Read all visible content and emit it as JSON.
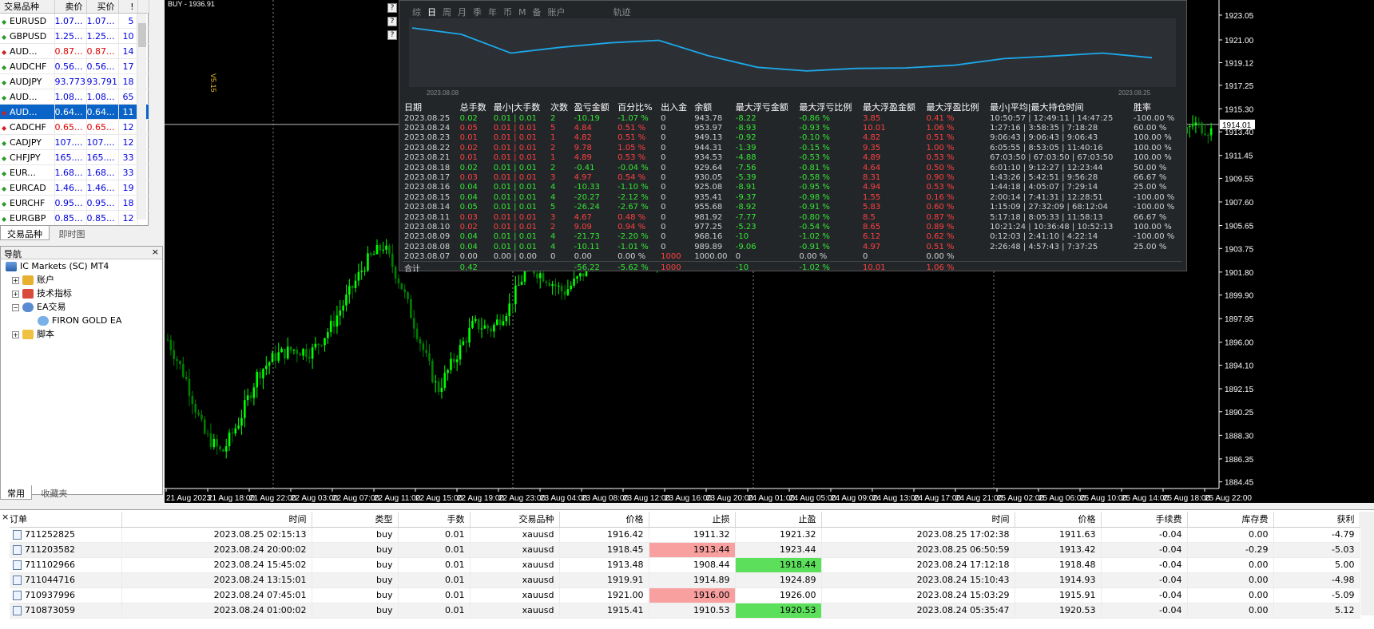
{
  "market_watch": {
    "headers": [
      "交易品种",
      "卖价",
      "买价",
      "!"
    ],
    "rows": [
      {
        "symbol": "EURUSD",
        "bid": "1.07...",
        "ask": "1.07...",
        "spread": "5",
        "dir": "up"
      },
      {
        "symbol": "GBPUSD",
        "bid": "1.25...",
        "ask": "1.25...",
        "spread": "10",
        "dir": "up"
      },
      {
        "symbol": "AUD...",
        "bid": "0.87...",
        "ask": "0.87...",
        "spread": "14",
        "dir": "down"
      },
      {
        "symbol": "AUDCHF",
        "bid": "0.56...",
        "ask": "0.56...",
        "spread": "17",
        "dir": "up"
      },
      {
        "symbol": "AUDJPY",
        "bid": "93.773",
        "ask": "93.791",
        "spread": "18",
        "dir": "up"
      },
      {
        "symbol": "AUD...",
        "bid": "1.08...",
        "ask": "1.08...",
        "spread": "65",
        "dir": "up"
      },
      {
        "symbol": "AUD...",
        "bid": "0.64...",
        "ask": "0.64...",
        "spread": "11",
        "dir": "down"
      },
      {
        "symbol": "CADCHF",
        "bid": "0.65...",
        "ask": "0.65...",
        "spread": "12",
        "dir": "down"
      },
      {
        "symbol": "CADJPY",
        "bid": "107....",
        "ask": "107....",
        "spread": "12",
        "dir": "up"
      },
      {
        "symbol": "CHFJPY",
        "bid": "165....",
        "ask": "165....",
        "spread": "33",
        "dir": "up"
      },
      {
        "symbol": "EUR...",
        "bid": "1.68...",
        "ask": "1.68...",
        "spread": "33",
        "dir": "up"
      },
      {
        "symbol": "EURCAD",
        "bid": "1.46...",
        "ask": "1.46...",
        "spread": "19",
        "dir": "up"
      },
      {
        "symbol": "EURCHF",
        "bid": "0.95...",
        "ask": "0.95...",
        "spread": "18",
        "dir": "up"
      },
      {
        "symbol": "EURGBP",
        "bid": "0.85...",
        "ask": "0.85...",
        "spread": "12",
        "dir": "up"
      }
    ],
    "tabs": [
      "交易品种",
      "即时图"
    ]
  },
  "navigator": {
    "title": "导航",
    "close": "×",
    "items": [
      "IC Markets (SC) MT4",
      "账户",
      "技术指标",
      "EA交易",
      "FIRON GOLD EA",
      "脚本"
    ],
    "tabs": [
      "常用",
      "收藏夹"
    ]
  },
  "chart": {
    "header": "BUY - 1936.91",
    "ea_label": "V5.15",
    "price_labels": [
      "1923.05",
      "1921.00",
      "1919.12",
      "1917.25",
      "1915.30",
      "1913.40",
      "1911.45",
      "1909.55",
      "1907.60",
      "1905.65",
      "1903.75",
      "1901.80",
      "1899.90",
      "1897.95",
      "1896.00",
      "1894.10",
      "1892.15",
      "1890.25",
      "1888.30",
      "1886.35",
      "1884.45"
    ],
    "current_price": "1914.01",
    "time_labels": [
      "21 Aug 2023",
      "21 Aug 18:00",
      "21 Aug 22:00",
      "22 Aug 03:00",
      "22 Aug 07:00",
      "22 Aug 11:00",
      "22 Aug 15:00",
      "22 Aug 19:00",
      "22 Aug 23:00",
      "23 Aug 04:00",
      "23 Aug 08:00",
      "23 Aug 12:00",
      "23 Aug 16:00",
      "23 Aug 20:00",
      "24 Aug 01:00",
      "24 Aug 05:00",
      "24 Aug 09:00",
      "24 Aug 13:00",
      "24 Aug 17:00",
      "24 Aug 21:00",
      "25 Aug 02:00",
      "25 Aug 06:00",
      "25 Aug 10:00",
      "25 Aug 14:00",
      "25 Aug 18:00",
      "25 Aug 22:00"
    ],
    "close_prices": [
      1896.2,
      1893.0,
      1888.5,
      1886.8,
      1889.6,
      1893.4,
      1894.9,
      1895.4,
      1895.2,
      1897.1,
      1899.8,
      1902.6,
      1904.0,
      1900.6,
      1896.2,
      1892.0,
      1894.8,
      1897.5,
      1897.1,
      1899.0,
      1902.3,
      1901.4,
      1900.1,
      1901.5,
      1903.6,
      1903.9,
      1904.3,
      1902.8,
      1904.6,
      1906.2,
      1909.4,
      1913.8,
      1914.7,
      1910.6,
      1912.4,
      1913.6,
      1913.4,
      1912.3,
      1913.5,
      1914.0,
      1916.2,
      1917.6,
      1918.1,
      1916.4,
      1915.6,
      1914.2,
      1914.9,
      1916.3,
      1915.1,
      1913.3,
      1915.4,
      1917.2,
      1918.6,
      1921.7,
      1906.1,
      1908.8,
      1912.4,
      1914.0,
      1913.5
    ]
  },
  "stats_panel": {
    "tabs": [
      "综",
      "日",
      "周",
      "月",
      "季",
      "年",
      "币",
      "M",
      "备",
      "账户",
      "轨迹"
    ],
    "active_tab": "日",
    "side_buttons": [
      "?",
      "?",
      "?"
    ],
    "equity_axis": {
      "start": "2023.08.08",
      "end": "2023.08.25"
    },
    "equity_points": [
      992.0,
      989.0,
      980.2,
      982.9,
      985.0,
      986.2,
      979.0,
      973.5,
      971.8,
      973.0,
      973.2,
      974.5,
      977.6,
      978.8,
      980.2,
      978.0
    ],
    "headers": [
      "日期",
      "总手数",
      "最小|大手数",
      "次数",
      "盈亏金额",
      "百分比%",
      "出入金",
      "余额",
      "最大浮亏金额",
      "最大浮亏比例",
      "最大浮盈金额",
      "最大浮盈比例",
      "最小|平均|最大持仓时间",
      "胜率"
    ],
    "rows": [
      [
        "2023.08.25",
        "0.02",
        "0.01 | 0.01",
        "2",
        "-10.19",
        "-1.07 %",
        "0",
        "943.78",
        "-8.22",
        "-0.86 %",
        "3.85",
        "0.41 %",
        "10:50:57 | 12:49:11 | 14:47:25",
        "-100.00 %"
      ],
      [
        "2023.08.24",
        "0.05",
        "0.01 | 0.01",
        "5",
        "4.84",
        "0.51 %",
        "0",
        "953.97",
        "-8.93",
        "-0.93 %",
        "10.01",
        "1.06 %",
        "1:27:16 | 3:58:35 | 7:18:28",
        "60.00 %"
      ],
      [
        "2023.08.23",
        "0.01",
        "0.01 | 0.01",
        "1",
        "4.82",
        "0.51 %",
        "0",
        "949.13",
        "-0.92",
        "-0.10 %",
        "4.82",
        "0.51 %",
        "9:06:43 | 9:06:43 | 9:06:43",
        "100.00 %"
      ],
      [
        "2023.08.22",
        "0.02",
        "0.01 | 0.01",
        "2",
        "9.78",
        "1.05 %",
        "0",
        "944.31",
        "-1.39",
        "-0.15 %",
        "9.35",
        "1.00 %",
        "6:05:55 | 8:53:05 | 11:40:16",
        "100.00 %"
      ],
      [
        "2023.08.21",
        "0.01",
        "0.01 | 0.01",
        "1",
        "4.89",
        "0.53 %",
        "0",
        "934.53",
        "-4.88",
        "-0.53 %",
        "4.89",
        "0.53 %",
        "67:03:50 | 67:03:50 | 67:03:50",
        "100.00 %"
      ],
      [
        "2023.08.18",
        "0.02",
        "0.01 | 0.01",
        "2",
        "-0.41",
        "-0.04 %",
        "0",
        "929.64",
        "-7.56",
        "-0.81 %",
        "4.64",
        "0.50 %",
        "6:01:10 | 9:12:27 | 12:23:44",
        "50.00 %"
      ],
      [
        "2023.08.17",
        "0.03",
        "0.01 | 0.01",
        "3",
        "4.97",
        "0.54 %",
        "0",
        "930.05",
        "-5.39",
        "-0.58 %",
        "8.31",
        "0.90 %",
        "1:43:26 | 5:42:51 | 9:56:28",
        "66.67 %"
      ],
      [
        "2023.08.16",
        "0.04",
        "0.01 | 0.01",
        "4",
        "-10.33",
        "-1.10 %",
        "0",
        "925.08",
        "-8.91",
        "-0.95 %",
        "4.94",
        "0.53 %",
        "1:44:18 | 4:05:07 | 7:29:14",
        "25.00 %"
      ],
      [
        "2023.08.15",
        "0.04",
        "0.01 | 0.01",
        "4",
        "-20.27",
        "-2.12 %",
        "0",
        "935.41",
        "-9.37",
        "-0.98 %",
        "1.55",
        "0.16 %",
        "2:00:14 | 7:41:31 | 12:28:51",
        "-100.00 %"
      ],
      [
        "2023.08.14",
        "0.05",
        "0.01 | 0.01",
        "5",
        "-26.24",
        "-2.67 %",
        "0",
        "955.68",
        "-8.92",
        "-0.91 %",
        "5.83",
        "0.60 %",
        "1:15:09 | 27:32:09 | 68:12:04",
        "-100.00 %"
      ],
      [
        "2023.08.11",
        "0.03",
        "0.01 | 0.01",
        "3",
        "4.67",
        "0.48 %",
        "0",
        "981.92",
        "-7.77",
        "-0.80 %",
        "8.5",
        "0.87 %",
        "5:17:18 | 8:05:33 | 11:58:13",
        "66.67 %"
      ],
      [
        "2023.08.10",
        "0.02",
        "0.01 | 0.01",
        "2",
        "9.09",
        "0.94 %",
        "0",
        "977.25",
        "-5.23",
        "-0.54 %",
        "8.65",
        "0.89 %",
        "10:21:24 | 10:36:48 | 10:52:13",
        "100.00 %"
      ],
      [
        "2023.08.09",
        "0.04",
        "0.01 | 0.01",
        "4",
        "-21.73",
        "-2.20 %",
        "0",
        "968.16",
        "-10",
        "-1.02 %",
        "6.12",
        "0.62 %",
        "0:12:03 | 2:41:10 | 4:22:14",
        "-100.00 %"
      ],
      [
        "2023.08.08",
        "0.04",
        "0.01 | 0.01",
        "4",
        "-10.11",
        "-1.01 %",
        "0",
        "989.89",
        "-9.06",
        "-0.91 %",
        "4.97",
        "0.51 %",
        "2:26:48 | 4:57:43 | 7:37:25",
        "25.00 %"
      ],
      [
        "2023.08.07",
        "0.00",
        "0.00 | 0.00",
        "0",
        "0.00",
        "0.00 %",
        "1000",
        "1000.00",
        "0",
        "0.00 %",
        "0",
        "0.00 %",
        "",
        ""
      ]
    ],
    "total": [
      "合计",
      "0.42",
      "",
      "",
      "-56.22",
      "-5.62 %",
      "1000",
      "",
      "-10",
      "-1.02 %",
      "10.01",
      "1.06 %",
      "",
      ""
    ]
  },
  "terminal": {
    "close": "×",
    "headers": [
      "订单",
      "时间",
      "类型",
      "手数",
      "交易品种",
      "价格",
      "止损",
      "止盈",
      "时间",
      "价格",
      "手续费",
      "库存费",
      "获利"
    ],
    "rows": [
      [
        "711252825",
        "2023.08.25 02:15:13",
        "buy",
        "0.01",
        "xauusd",
        "1916.42",
        "1911.32",
        "1921.32",
        "2023.08.25 17:02:38",
        "1911.63",
        "-0.04",
        "0.00",
        "-4.79"
      ],
      [
        "711203582",
        "2023.08.24 20:00:02",
        "buy",
        "0.01",
        "xauusd",
        "1918.45",
        "1913.44",
        "1923.44",
        "2023.08.25 06:50:59",
        "1913.42",
        "-0.04",
        "-0.29",
        "-5.03"
      ],
      [
        "711102966",
        "2023.08.24 15:45:02",
        "buy",
        "0.01",
        "xauusd",
        "1913.48",
        "1908.44",
        "1918.44",
        "2023.08.24 17:12:18",
        "1918.48",
        "-0.04",
        "0.00",
        "5.00"
      ],
      [
        "711044716",
        "2023.08.24 13:15:01",
        "buy",
        "0.01",
        "xauusd",
        "1919.91",
        "1914.89",
        "1924.89",
        "2023.08.24 15:10:43",
        "1914.93",
        "-0.04",
        "0.00",
        "-4.98"
      ],
      [
        "710937996",
        "2023.08.24 07:45:01",
        "buy",
        "0.01",
        "xauusd",
        "1921.00",
        "1916.00",
        "1926.00",
        "2023.08.24 15:03:29",
        "1915.91",
        "-0.04",
        "0.00",
        "-5.09"
      ],
      [
        "710873059",
        "2023.08.24 01:00:02",
        "buy",
        "0.01",
        "xauusd",
        "1915.41",
        "1910.53",
        "1920.53",
        "2023.08.24 05:35:47",
        "1920.53",
        "-0.04",
        "0.00",
        "5.12"
      ]
    ],
    "highlights": [
      {
        "row": 1,
        "col": 6,
        "color": "red"
      },
      {
        "row": 2,
        "col": 7,
        "color": "green"
      },
      {
        "row": 4,
        "col": 6,
        "color": "red"
      },
      {
        "row": 5,
        "col": 7,
        "color": "green"
      }
    ]
  },
  "colors": {
    "bull": "#00ff00",
    "bear": "#008000",
    "equity": "#1da8e8",
    "profit": "#33e633",
    "loss": "#ff4040",
    "selected": "#0a64c8"
  }
}
